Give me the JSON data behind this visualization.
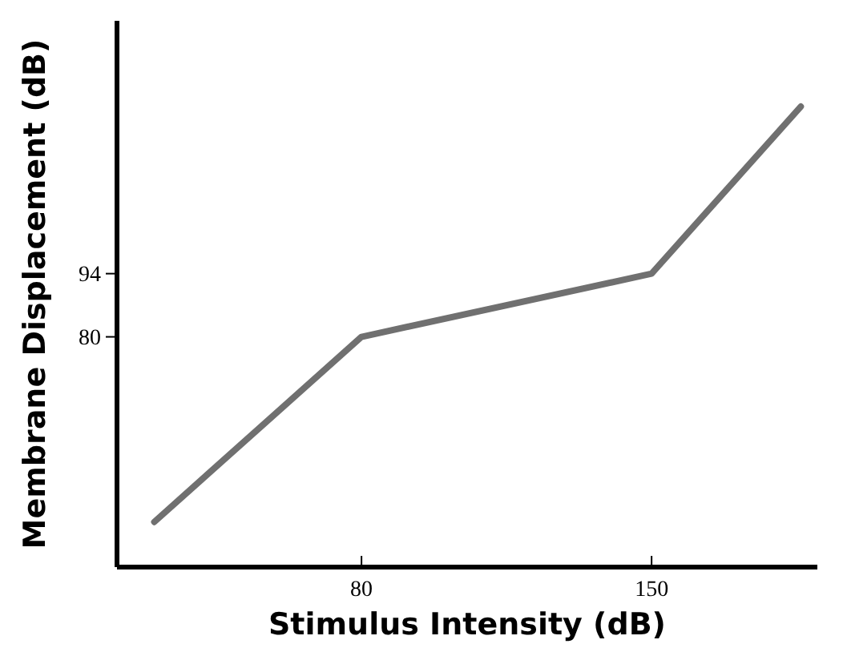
{
  "chart_data": {
    "type": "line",
    "xlabel": "Stimulus Intensity (dB)",
    "ylabel": "Membrane Displacement (dB)",
    "x": [
      30,
      80,
      150,
      186
    ],
    "series": [
      {
        "color": "#707070",
        "values": [
          39,
          80,
          94,
          131
        ]
      }
    ],
    "xlim": [
      21,
      190
    ],
    "ylim": [
      29,
      150
    ],
    "xticks": [
      80,
      150
    ],
    "yticks": [
      80,
      94
    ],
    "grid": false,
    "marker": "none",
    "line_style": "solid"
  }
}
